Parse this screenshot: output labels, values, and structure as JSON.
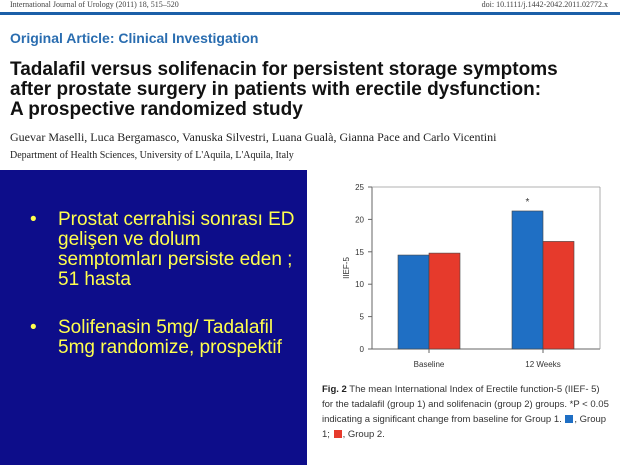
{
  "header": {
    "journal": "International Journal of Urology (2011) 18, 515–520",
    "doi": "doi: 10.1111/j.1442-2042.2011.02772.x"
  },
  "article": {
    "section": "Original Article: Clinical Investigation",
    "title_lines": [
      "Tadalafil versus solifenacin for persistent storage symptoms",
      "after prostate surgery in patients with erectile dysfunction:",
      "A prospective randomized study"
    ],
    "authors": "Guevar Maselli, Luca Bergamasco, Vanuska Silvestri, Luana Gualà, Gianna Pace and Carlo Vicentini",
    "affiliation": "Department of Health Sciences, University of L'Aquila, L'Aquila, Italy"
  },
  "slide": {
    "bullets": [
      "Prostat cerrahisi sonrası ED gelişen ve dolum semptomları persiste eden ; 51 hasta",
      "Solifenasin 5mg/ Tadalafil 5mg randomize, prospektif"
    ],
    "bullet_marker": "•"
  },
  "figure": {
    "label": "Fig. 2",
    "caption_text": "The mean International Index of Erectile function-5 (IIEF- 5) for the tadalafil (group 1) and solifenacin (group 2) groups. *P < 0.05 indicating a significant change from baseline for Group 1.",
    "legend_group1": ", Group 1;",
    "legend_group2": ", Group 2."
  },
  "chart_data": {
    "type": "bar",
    "categories": [
      "Baseline",
      "12 Weeks"
    ],
    "series": [
      {
        "values": [
          14.5,
          21.3
        ],
        "color": "#1f6fc4"
      },
      {
        "values": [
          14.8,
          16.6
        ],
        "color": "#e63a2c"
      }
    ],
    "ylabel": "IIEF-5",
    "ylim": [
      0,
      25
    ],
    "yticks": [
      0,
      5,
      10,
      15,
      20,
      25
    ],
    "annotations": [
      {
        "category": "12 Weeks",
        "series": 0,
        "text": "*"
      }
    ],
    "grid": false
  }
}
